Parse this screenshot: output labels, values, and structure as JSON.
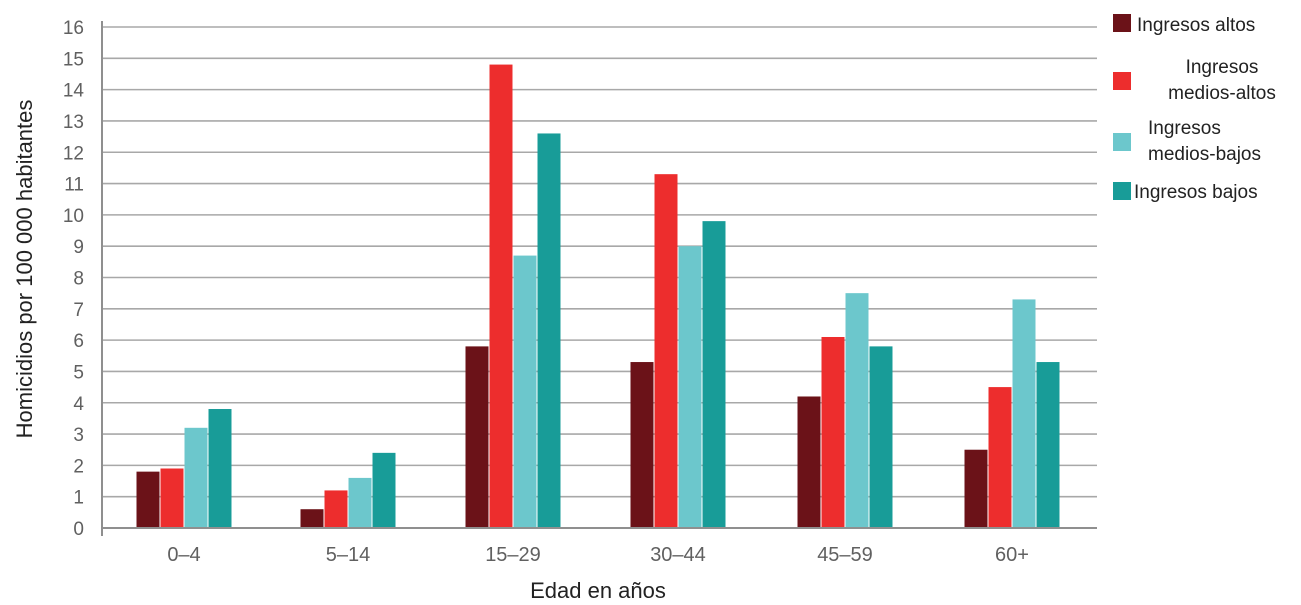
{
  "chart_data": {
    "type": "bar",
    "title": "",
    "xlabel": "Edad en años",
    "ylabel": "Homicidios por 100 000 habitantes",
    "ylim": [
      0,
      16
    ],
    "yticks": [
      0,
      1,
      2,
      3,
      4,
      5,
      6,
      7,
      8,
      9,
      10,
      11,
      12,
      13,
      14,
      15,
      16
    ],
    "grid": true,
    "legend_position": "top-right",
    "categories": [
      "0–4",
      "5–14",
      "15–29",
      "30–44",
      "45–59",
      "60+"
    ],
    "series": [
      {
        "name": "Ingresos altos",
        "legend_lines": [
          "Ingresos altos"
        ],
        "color": "#6b1218",
        "values": [
          1.8,
          0.6,
          5.8,
          5.3,
          4.2,
          2.5
        ]
      },
      {
        "name": "Ingresos medios-altos",
        "legend_lines": [
          "Ingresos",
          "medios-altos"
        ],
        "color": "#ed2d2d",
        "values": [
          1.9,
          1.2,
          14.8,
          11.3,
          6.1,
          4.5
        ]
      },
      {
        "name": "Ingresos medios-bajos",
        "legend_lines": [
          "Ingresos",
          "medios-bajos"
        ],
        "color": "#6cc7cc",
        "values": [
          3.2,
          1.6,
          8.7,
          9.0,
          7.5,
          7.3
        ]
      },
      {
        "name": "Ingresos bajos",
        "legend_lines": [
          "Ingresos bajos"
        ],
        "color": "#189c98",
        "values": [
          3.8,
          2.4,
          12.6,
          9.8,
          5.8,
          5.3
        ]
      }
    ]
  }
}
